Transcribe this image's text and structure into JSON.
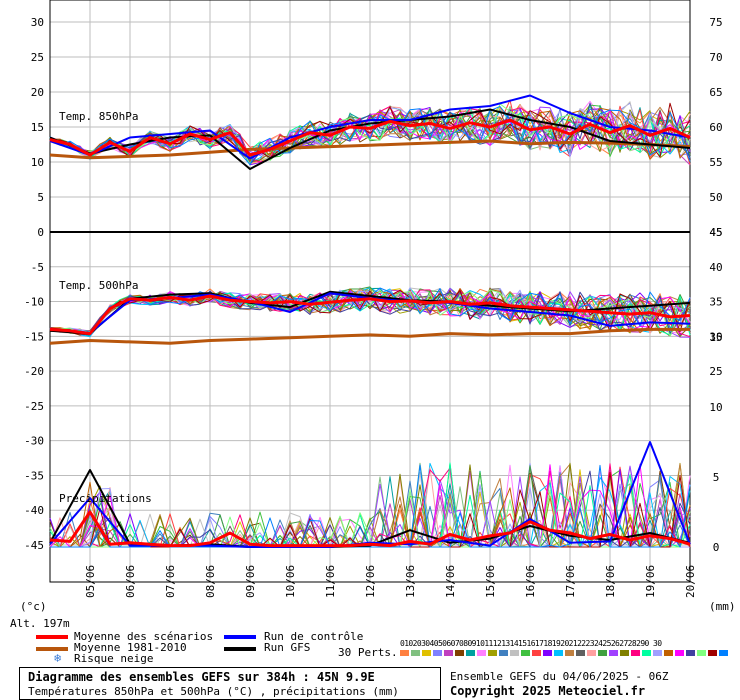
{
  "chart_data": [
    {
      "type": "line",
      "panel": "temp-850hPa",
      "title": "Temp. 850hPa",
      "ylabel": "(°c)",
      "ylim": [
        0,
        30
      ],
      "left_ticks": [
        0,
        5,
        10,
        15,
        20,
        25,
        30
      ],
      "right_ticks": [
        45,
        50,
        55,
        60,
        65,
        70,
        75
      ],
      "x_dates": [
        "05/06",
        "06/06",
        "07/06",
        "08/06",
        "09/06",
        "10/06",
        "11/06",
        "12/06",
        "13/06",
        "14/06",
        "15/06",
        "16/06",
        "17/06",
        "18/06",
        "19/06",
        "20/06"
      ],
      "xlim_days": [
        0,
        16
      ],
      "series": [
        {
          "name": "Moyenne des scénarios",
          "color": "#ff0000",
          "x": [
            0,
            0.5,
            1,
            1.5,
            2,
            2.5,
            3,
            3.5,
            4,
            4.5,
            5,
            5.5,
            6,
            6.5,
            7,
            7.5,
            8,
            8.5,
            9,
            9.5,
            10,
            10.5,
            11,
            11.5,
            12,
            12.5,
            13,
            13.5,
            14,
            14.5,
            15,
            15.5,
            16
          ],
          "values": [
            13.2,
            12.5,
            11.0,
            12.8,
            11.5,
            13.5,
            12.6,
            14.0,
            13.2,
            14.2,
            11.0,
            11.8,
            13.0,
            14.2,
            13.8,
            15.0,
            14.8,
            15.8,
            15.2,
            15.5,
            14.8,
            15.6,
            15.0,
            16.0,
            14.6,
            15.0,
            14.0,
            15.4,
            14.2,
            15.2,
            13.8,
            14.8,
            13.5
          ]
        },
        {
          "name": "Moyenne 1981-2010",
          "color": "#b8560c",
          "x": [
            0,
            1,
            2,
            3,
            4,
            5,
            6,
            7,
            8,
            9,
            10,
            11,
            12,
            13,
            14,
            15,
            16
          ],
          "values": [
            11.0,
            10.6,
            10.8,
            11.0,
            11.4,
            11.8,
            12.0,
            12.2,
            12.4,
            12.6,
            12.8,
            13.0,
            12.6,
            12.8,
            12.7,
            12.5,
            12.2
          ]
        },
        {
          "name": "Run de contrôle",
          "color": "#0000ff",
          "x": [
            0,
            1,
            2,
            3,
            4,
            5,
            6,
            7,
            8,
            9,
            10,
            11,
            12,
            13,
            14,
            15,
            16
          ],
          "values": [
            13.0,
            11.0,
            13.5,
            14.0,
            14.5,
            10.5,
            13.5,
            15.0,
            16.0,
            16.0,
            17.5,
            18.0,
            19.5,
            17.0,
            15.0,
            14.5,
            13.5
          ]
        },
        {
          "name": "Run GFS",
          "color": "#000000",
          "x": [
            0,
            1,
            2,
            3,
            4,
            5,
            6,
            7,
            8,
            9,
            10,
            11,
            12,
            13,
            14,
            15,
            16
          ],
          "values": [
            13.5,
            11.2,
            12.5,
            13.5,
            13.8,
            9.0,
            12.0,
            14.5,
            15.5,
            16.0,
            16.5,
            17.5,
            16.0,
            15.0,
            13.0,
            12.5,
            12.0
          ]
        }
      ]
    },
    {
      "type": "line",
      "panel": "temp-500hPa",
      "title": "Temp. 500hPa",
      "ylim": [
        -20,
        0
      ],
      "left_ticks": [
        -20,
        -15,
        -10,
        -5,
        0
      ],
      "right_ticks": [
        25,
        30,
        35,
        40,
        45
      ],
      "series": [
        {
          "name": "Moyenne des scénarios",
          "color": "#ff0000",
          "x": [
            0,
            0.5,
            1,
            1.5,
            2,
            2.5,
            3,
            3.5,
            4,
            4.5,
            5,
            5.5,
            6,
            6.5,
            7,
            7.5,
            8,
            8.5,
            9,
            9.5,
            10,
            10.5,
            11,
            11.5,
            12,
            12.5,
            13,
            13.5,
            14,
            14.5,
            15,
            15.5,
            16
          ],
          "values": [
            -14.0,
            -14.2,
            -14.6,
            -11.0,
            -9.6,
            -9.8,
            -9.4,
            -9.8,
            -9.2,
            -9.8,
            -10.0,
            -10.2,
            -10.0,
            -10.4,
            -10.1,
            -9.8,
            -9.6,
            -10.0,
            -9.9,
            -10.2,
            -10.0,
            -10.4,
            -10.2,
            -10.6,
            -10.8,
            -11.0,
            -11.2,
            -11.4,
            -11.6,
            -11.8,
            -11.6,
            -12.2,
            -12.0
          ]
        },
        {
          "name": "Moyenne 1981-2010",
          "color": "#b8560c",
          "x": [
            0,
            1,
            2,
            3,
            4,
            5,
            6,
            7,
            8,
            9,
            10,
            11,
            12,
            13,
            14,
            15,
            16
          ],
          "values": [
            -16.0,
            -15.6,
            -15.8,
            -16.0,
            -15.6,
            -15.4,
            -15.2,
            -15.0,
            -14.8,
            -15.0,
            -14.6,
            -14.8,
            -14.6,
            -14.6,
            -14.2,
            -14.0,
            -14.0
          ]
        },
        {
          "name": "Run de contrôle",
          "color": "#0000ff",
          "x": [
            0,
            1,
            2,
            3,
            4,
            5,
            6,
            7,
            8,
            9,
            10,
            11,
            12,
            13,
            14,
            15,
            16
          ],
          "values": [
            -14.0,
            -14.5,
            -9.8,
            -9.5,
            -9.0,
            -10.0,
            -11.5,
            -8.8,
            -9.5,
            -10.0,
            -10.2,
            -11.0,
            -11.5,
            -12.0,
            -13.5,
            -13.0,
            -13.2
          ]
        },
        {
          "name": "Run GFS",
          "color": "#000000",
          "x": [
            0,
            1,
            2,
            3,
            4,
            5,
            6,
            7,
            8,
            9,
            10,
            11,
            12,
            13,
            14,
            15,
            16
          ],
          "values": [
            -14.2,
            -14.6,
            -9.6,
            -9.0,
            -8.8,
            -10.2,
            -10.8,
            -8.6,
            -9.2,
            -9.8,
            -10.0,
            -10.6,
            -11.0,
            -11.4,
            -11.0,
            -10.6,
            -10.2
          ]
        }
      ]
    },
    {
      "type": "line",
      "panel": "precipitations",
      "title": "Précipitations",
      "ylabel": "(mm)",
      "ylim": [
        0,
        15
      ],
      "right_ticks": [
        0,
        5,
        10,
        15
      ],
      "left_ticks": [
        -45,
        -40,
        -35,
        -30,
        -25
      ],
      "series": [
        {
          "name": "Moyenne des scénarios",
          "color": "#ff0000",
          "x": [
            0,
            0.5,
            1,
            1.5,
            2,
            2.5,
            3,
            3.5,
            4,
            4.5,
            5,
            5.5,
            6,
            6.5,
            7,
            7.5,
            8,
            8.5,
            9,
            9.5,
            10,
            10.5,
            11,
            11.5,
            12,
            12.5,
            13,
            13.5,
            14,
            14.5,
            15,
            15.5,
            16
          ],
          "values": [
            0.5,
            0.4,
            2.5,
            0.2,
            0.3,
            0.2,
            0.1,
            0.1,
            0.3,
            1.0,
            0.2,
            0.1,
            0.1,
            0.1,
            0.1,
            0.1,
            0.2,
            0.1,
            0.4,
            0.2,
            0.9,
            0.5,
            0.8,
            1.0,
            1.8,
            1.2,
            1.0,
            0.6,
            0.9,
            0.5,
            0.8,
            0.6,
            0.2
          ]
        },
        {
          "name": "Run de contrôle",
          "color": "#0000ff",
          "x": [
            0,
            1,
            2,
            3,
            4,
            5,
            6,
            7,
            8,
            9,
            10,
            11,
            12,
            13,
            14,
            15,
            16
          ],
          "values": [
            0.2,
            3.5,
            0.1,
            0.1,
            0.1,
            0,
            0,
            0,
            0.3,
            0.2,
            0.5,
            0.1,
            2.0,
            0.3,
            0.4,
            7.5,
            0.2
          ]
        },
        {
          "name": "Run GFS",
          "color": "#000000",
          "x": [
            0,
            1,
            2,
            3,
            4,
            5,
            6,
            7,
            8,
            9,
            10,
            11,
            12,
            13,
            14,
            15,
            16
          ],
          "values": [
            0.3,
            5.5,
            0.2,
            0.1,
            0.2,
            0,
            0,
            0,
            0.1,
            1.2,
            0.3,
            0.6,
            1.5,
            0.8,
            0.5,
            1.0,
            0.3
          ]
        }
      ]
    }
  ],
  "top_panel_label": "Temp. 850hPa",
  "mid_panel_label": "Temp. 500hPa",
  "precip_label": "Précipitations",
  "left_unit": "(°c)",
  "right_unit": "(mm)",
  "altitude": "Alt. 197m",
  "legend": {
    "mean": "Moyenne des scénarios",
    "clim": "Moyenne 1981-2010",
    "snow": "Risque neige",
    "control": "Run de contrôle",
    "gfs": "Run GFS",
    "perts_label": "30 Perts.",
    "perts_numbers": "01020304050607080910111213141516171819202122232425262728290 30"
  },
  "pert_colors": [
    "#ff8040",
    "#80c080",
    "#e0c000",
    "#8080ff",
    "#c040c0",
    "#804000",
    "#00a0a0",
    "#ff80ff",
    "#a0a000",
    "#4080c0",
    "#c0c0c0",
    "#40c040",
    "#ff4040",
    "#8000ff",
    "#00c0ff",
    "#c08040",
    "#606060",
    "#ffa0a0",
    "#40a040",
    "#a040ff",
    "#808000",
    "#ff0080",
    "#00ffa0",
    "#a0a0ff",
    "#c06000",
    "#ff00ff",
    "#4040a0",
    "#80ff80",
    "#a00000",
    "#0080ff"
  ],
  "footer": {
    "title": "Diagramme des ensembles GEFS sur 384h : 45N 9.9E",
    "subtitle": "Températures 850hPa et 500hPa (°C) , précipitations (mm)",
    "run_info": "Ensemble GEFS du 04/06/2025 - 06Z",
    "copyright": "Copyright 2025 Meteociel.fr"
  },
  "colors": {
    "mean": "#ff0000",
    "clim": "#b8560c",
    "control": "#0000ff",
    "gfs": "#000000",
    "grid": "#bdbdbd"
  }
}
